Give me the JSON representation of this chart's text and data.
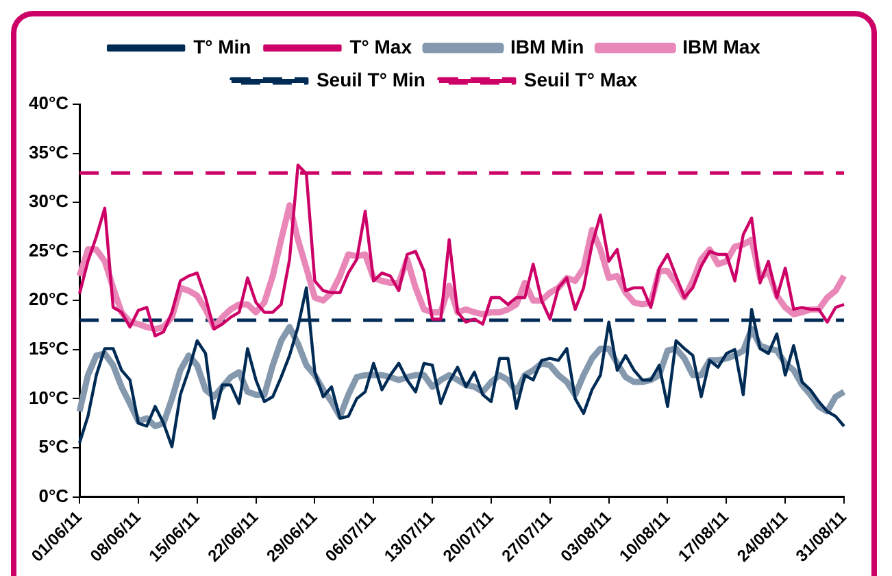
{
  "chart_data": {
    "type": "line",
    "categories": [
      "01/06/11",
      null,
      null,
      null,
      null,
      null,
      null,
      "08/06/11",
      null,
      null,
      null,
      null,
      null,
      null,
      "15/06/11",
      null,
      null,
      null,
      null,
      null,
      null,
      "22/06/11",
      null,
      null,
      null,
      null,
      null,
      null,
      "29/06/11",
      null,
      null,
      null,
      null,
      null,
      null,
      "06/07/11",
      null,
      null,
      null,
      null,
      null,
      null,
      "13/07/11",
      null,
      null,
      null,
      null,
      null,
      null,
      "20/07/11",
      null,
      null,
      null,
      null,
      null,
      null,
      "27/07/11",
      null,
      null,
      null,
      null,
      null,
      null,
      "03/08/11",
      null,
      null,
      null,
      null,
      null,
      null,
      "10/08/11",
      null,
      null,
      null,
      null,
      null,
      null,
      "17/08/11",
      null,
      null,
      null,
      null,
      null,
      null,
      "24/08/11",
      null,
      null,
      null,
      null,
      null,
      null,
      "31/08/11"
    ],
    "series": [
      {
        "name": "T° Min",
        "color": "#002b55",
        "values": [
          5.5,
          8.2,
          12.4,
          15.1,
          15.1,
          12.9,
          11.9,
          7.5,
          7.2,
          9.2,
          7.5,
          5.1,
          10.4,
          12.9,
          15.9,
          14.6,
          8,
          11.4,
          11.4,
          9.5,
          15.1,
          11.9,
          9.7,
          10.2,
          12.2,
          14.4,
          17.3,
          21.3,
          12.7,
          10.2,
          11.2,
          8,
          8.2,
          10,
          10.7,
          13.6,
          10.9,
          12.4,
          13.6,
          11.9,
          10.7,
          13.6,
          13.4,
          9.5,
          11.7,
          13.2,
          11.2,
          12.7,
          10.4,
          9.7,
          14.1,
          14.1,
          9,
          12.4,
          11.9,
          13.9,
          14.1,
          13.9,
          15.1,
          10,
          8.5,
          10.9,
          12.4,
          17.8,
          12.9,
          14.4,
          12.9,
          11.9,
          11.9,
          13.4,
          9.2,
          15.9,
          15.1,
          14.4,
          10.2,
          13.9,
          13.2,
          14.6,
          15,
          10.4,
          19.1,
          15.1,
          14.6,
          16.6,
          12.4,
          15.4,
          11.7,
          10.9,
          9.7,
          8.7,
          8.2,
          7.2
        ]
      },
      {
        "name": "T° Max",
        "color": "#cc0066",
        "values": [
          20.7,
          24,
          26.5,
          29.4,
          19.3,
          18.8,
          17.3,
          19,
          19.3,
          16.4,
          16.8,
          18.8,
          22,
          22.5,
          22.8,
          20.3,
          17.1,
          17.6,
          18.3,
          18.8,
          22.3,
          19.8,
          18.8,
          18.8,
          19.6,
          24.2,
          33.8,
          32.9,
          22,
          21,
          20.8,
          20.8,
          22.8,
          24.2,
          29.1,
          22,
          22.8,
          22.5,
          21,
          24.7,
          25,
          23,
          18.1,
          18.1,
          26.2,
          18.8,
          17.8,
          18.1,
          17.6,
          20.3,
          20.3,
          19.6,
          20.3,
          20.3,
          23.7,
          20,
          18.1,
          21.3,
          22.3,
          19.1,
          21.3,
          25.7,
          28.7,
          24,
          25.2,
          21,
          21.3,
          21.3,
          19.3,
          23.3,
          24.7,
          22.5,
          20.3,
          21.3,
          23.5,
          25,
          24.7,
          24.7,
          22,
          26.7,
          28.4,
          21.8,
          24,
          20.3,
          23.3,
          19.1,
          19.3,
          19.1,
          19.1,
          17.8,
          19.3,
          19.6
        ]
      },
      {
        "name": "IBM Min",
        "color": "#8498ae",
        "values": [
          8.7,
          12.4,
          14.4,
          14.6,
          13.4,
          11.2,
          9.5,
          7.7,
          8,
          7.2,
          7.5,
          10,
          12.9,
          14.4,
          13.4,
          10.9,
          10.2,
          11.2,
          12.2,
          12.7,
          10.7,
          10.4,
          10.4,
          13.4,
          15.9,
          17.3,
          15.6,
          13.4,
          12.4,
          10.9,
          9.7,
          8.2,
          10.4,
          12.2,
          12.4,
          12.4,
          12.4,
          12.2,
          11.9,
          12.2,
          12.4,
          12.4,
          11.2,
          11.9,
          12.4,
          11.9,
          11.4,
          11.2,
          10.7,
          11.7,
          12.4,
          11.9,
          10.7,
          12.4,
          12.9,
          13.6,
          13.4,
          12.4,
          11.7,
          10.4,
          12.4,
          14.1,
          15.1,
          15.1,
          13.6,
          12.2,
          11.7,
          11.7,
          11.9,
          12.4,
          14.9,
          15.1,
          14.1,
          12.4,
          12.4,
          13.9,
          13.9,
          14.1,
          14.4,
          14.9,
          17.1,
          15.4,
          15.1,
          14.9,
          13.6,
          12.9,
          11.4,
          10.4,
          9.2,
          8.7,
          10.2,
          10.7
        ]
      },
      {
        "name": "IBM Max",
        "color": "#e887b8",
        "values": [
          22.5,
          25.2,
          25.2,
          24,
          21.3,
          18.8,
          17.8,
          17.6,
          17.3,
          17.1,
          17.3,
          18.3,
          21.3,
          21,
          20.5,
          19.1,
          17.3,
          18.3,
          19.1,
          19.6,
          19.6,
          18.8,
          19.8,
          22.5,
          26.2,
          29.7,
          26.2,
          23.3,
          20.3,
          20,
          20.8,
          22.5,
          24.7,
          24.5,
          24.7,
          22.3,
          22,
          21.8,
          21.8,
          24.2,
          21.3,
          19.1,
          18.8,
          18.8,
          21.5,
          18.8,
          19.1,
          18.8,
          18.6,
          18.8,
          18.8,
          19.1,
          19.6,
          21.8,
          20,
          20,
          20.8,
          21.3,
          22.3,
          22,
          23.3,
          27.2,
          25.2,
          22.3,
          22.5,
          20.8,
          19.8,
          19.6,
          19.8,
          23,
          23,
          21.8,
          20.3,
          22,
          24.2,
          25.2,
          23.7,
          24,
          25.5,
          25.7,
          26.2,
          22.3,
          23,
          20.5,
          19.3,
          18.6,
          18.8,
          19.1,
          19.1,
          20.3,
          21,
          22.5
        ]
      },
      {
        "name": "Seuil T° Min",
        "color": "#002b55",
        "line_style": "dashed",
        "values": [
          18,
          18,
          18,
          18,
          18,
          18,
          18,
          18,
          18,
          18,
          18,
          18,
          18,
          18,
          18,
          18,
          18,
          18,
          18,
          18,
          18,
          18,
          18,
          18,
          18,
          18,
          18,
          18,
          18,
          18,
          18,
          18,
          18,
          18,
          18,
          18,
          18,
          18,
          18,
          18,
          18,
          18,
          18,
          18,
          18,
          18,
          18,
          18,
          18,
          18,
          18,
          18,
          18,
          18,
          18,
          18,
          18,
          18,
          18,
          18,
          18,
          18,
          18,
          18,
          18,
          18,
          18,
          18,
          18,
          18,
          18,
          18,
          18,
          18,
          18,
          18,
          18,
          18,
          18,
          18,
          18,
          18,
          18,
          18,
          18,
          18,
          18,
          18,
          18,
          18,
          18,
          18
        ]
      },
      {
        "name": "Seuil T° Max",
        "color": "#cc0066",
        "line_style": "dashed",
        "values": [
          33,
          33,
          33,
          33,
          33,
          33,
          33,
          33,
          33,
          33,
          33,
          33,
          33,
          33,
          33,
          33,
          33,
          33,
          33,
          33,
          33,
          33,
          33,
          33,
          33,
          33,
          33,
          33,
          33,
          33,
          33,
          33,
          33,
          33,
          33,
          33,
          33,
          33,
          33,
          33,
          33,
          33,
          33,
          33,
          33,
          33,
          33,
          33,
          33,
          33,
          33,
          33,
          33,
          33,
          33,
          33,
          33,
          33,
          33,
          33,
          33,
          33,
          33,
          33,
          33,
          33,
          33,
          33,
          33,
          33,
          33,
          33,
          33,
          33,
          33,
          33,
          33,
          33,
          33,
          33,
          33,
          33,
          33,
          33,
          33,
          33,
          33,
          33,
          33,
          33,
          33,
          33
        ]
      }
    ],
    "ylim": [
      0,
      40
    ],
    "yticks": [
      {
        "value": 0,
        "label": "0°C"
      },
      {
        "value": 5,
        "label": "5°C"
      },
      {
        "value": 10,
        "label": "10°C"
      },
      {
        "value": 15,
        "label": "15°C"
      },
      {
        "value": 20,
        "label": "20°C"
      },
      {
        "value": 25,
        "label": "25°C"
      },
      {
        "value": 30,
        "label": "30°C"
      },
      {
        "value": 35,
        "label": "35°C"
      },
      {
        "value": 40,
        "label": "40°C"
      }
    ],
    "grid": false,
    "legend": "top",
    "marker": "none",
    "line_style": "solid"
  }
}
